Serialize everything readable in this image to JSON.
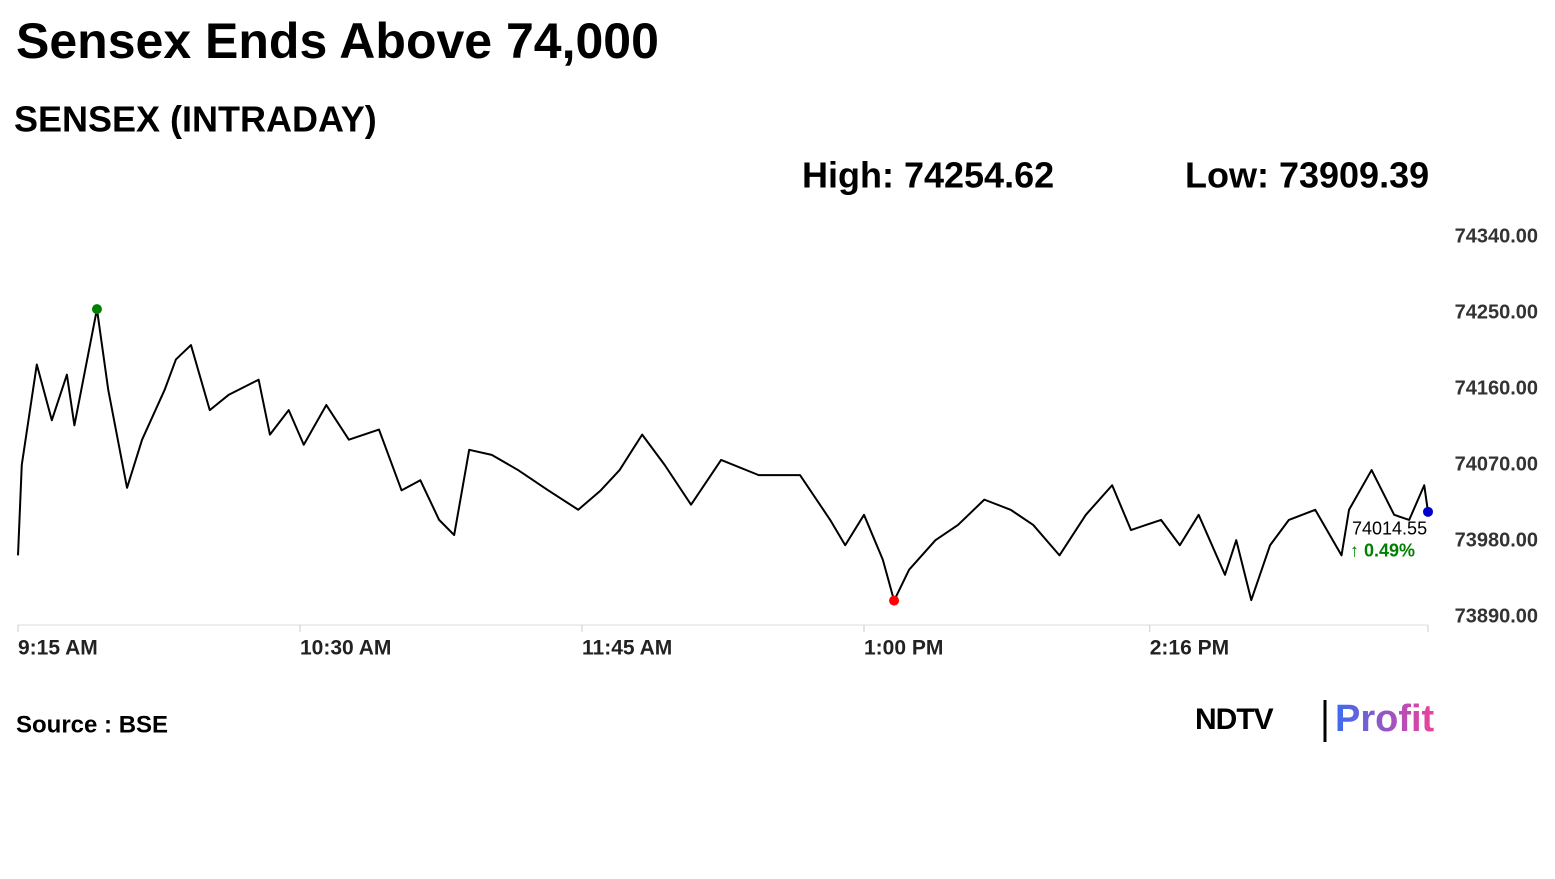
{
  "chart_data": {
    "type": "line",
    "title": "Sensex Ends Above 74,000",
    "subtitle": "SENSEX (INTRADAY)",
    "high_label": "High: 74254.62",
    "low_label": "Low: 73909.39",
    "x": [
      "9:15 AM",
      "9:16 AM",
      "9:20 AM",
      "9:24 AM",
      "9:28 AM",
      "9:30 AM",
      "9:36 AM",
      "9:39 AM",
      "9:44 AM",
      "9:48 AM",
      "9:54 AM",
      "9:57 AM",
      "10:01 AM",
      "10:06 AM",
      "10:11 AM",
      "10:19 AM",
      "10:22 AM",
      "10:27 AM",
      "10:31 AM",
      "10:37 AM",
      "10:43 AM",
      "10:51 AM",
      "10:57 AM",
      "11:02 AM",
      "11:07 AM",
      "11:11 AM",
      "11:15 AM",
      "11:21 AM",
      "11:28 AM",
      "11:36 AM",
      "11:44 AM",
      "11:50 AM",
      "11:55 AM",
      "12:01 PM",
      "12:07 PM",
      "12:14 PM",
      "12:22 PM",
      "12:32 PM",
      "12:43 PM",
      "12:51 PM",
      "12:55 PM",
      "1:00 PM",
      "1:05 PM",
      "1:08 PM",
      "1:12 PM",
      "1:19 PM",
      "1:25 PM",
      "1:32 PM",
      "1:39 PM",
      "1:45 PM",
      "1:52 PM",
      "1:59 PM",
      "2:06 PM",
      "2:11 PM",
      "2:19 PM",
      "2:24 PM",
      "2:29 PM",
      "2:36 PM",
      "2:39 PM",
      "2:43 PM",
      "2:48 PM",
      "2:53 PM",
      "3:00 PM",
      "3:07 PM",
      "3:09 PM",
      "3:15 PM",
      "3:21 PM",
      "3:25 PM",
      "3:29 PM",
      "3:30 PM"
    ],
    "series": [
      {
        "name": "SENSEX",
        "color": "#000000",
        "values": [
          73963,
          74070,
          74189,
          74123,
          74177,
          74117,
          74254.62,
          74159,
          74043,
          74100,
          74159,
          74195,
          74212,
          74135,
          74153,
          74171,
          74106,
          74135,
          74094,
          74141,
          74100,
          74112,
          74040,
          74052,
          74005,
          73987,
          74088,
          74082,
          74064,
          74040,
          74017,
          74040,
          74064,
          74106,
          74070,
          74023,
          74076,
          74058,
          74058,
          74005,
          73975,
          74011,
          73958,
          73909.39,
          73946,
          73981,
          73999,
          74029,
          74017,
          73999,
          73963,
          74011,
          74046,
          73993,
          74005,
          73975,
          74011,
          73940,
          73981,
          73910,
          73975,
          74005,
          74017,
          73963,
          74017,
          74064,
          74011,
          74005,
          74046,
          74014.55
        ]
      }
    ],
    "change_label": "↑ 0.49%",
    "xlim": [
      "9:15 AM",
      "3:30 PM"
    ],
    "xticks": [
      "9:15 AM",
      "10:30 AM",
      "11:45 AM",
      "1:00 PM",
      "2:16 PM"
    ],
    "ylim": [
      73890,
      74340
    ],
    "yticks": [
      {
        "value": 73890,
        "label": "73890.00"
      },
      {
        "value": 73980,
        "label": "73980.00"
      },
      {
        "value": 74070,
        "label": "74070.00"
      },
      {
        "value": 74160,
        "label": "74160.00"
      },
      {
        "value": 74250,
        "label": "74250.00"
      },
      {
        "value": 74340,
        "label": "74340.00"
      }
    ],
    "high_color": "#008000",
    "low_color": "#ff0000",
    "last_color": "#0000cc",
    "source": "Source : BSE",
    "brand": "NDTV",
    "product": "Profit"
  }
}
